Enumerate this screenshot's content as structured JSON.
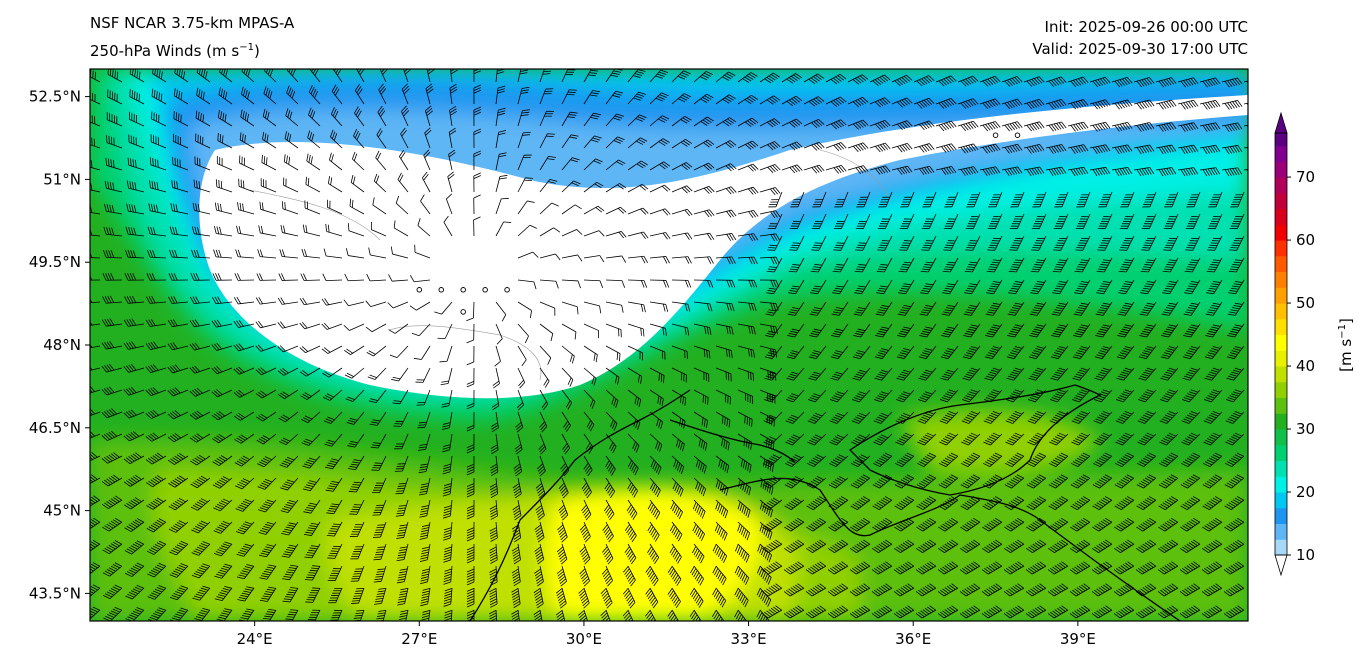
{
  "header": {
    "left_line1": "NSF NCAR 3.75-km MPAS-A",
    "left_line2": "250-hPa Winds (m s",
    "left_line2_sup": "−1",
    "left_line2_end": ")",
    "right_line1": "Init: 2025-09-26 00:00 UTC",
    "right_line2": "Valid: 2025-09-30 17:00 UTC"
  },
  "map": {
    "lon_range": [
      21,
      42.1
    ],
    "lat_range": [
      43.0,
      53.0
    ],
    "lat_ticks": [
      {
        "value": 52.5,
        "label": "52.5°N"
      },
      {
        "value": 51.0,
        "label": "51°N"
      },
      {
        "value": 49.5,
        "label": "49.5°N"
      },
      {
        "value": 48.0,
        "label": "48°N"
      },
      {
        "value": 46.5,
        "label": "46.5°N"
      },
      {
        "value": 45.0,
        "label": "45°N"
      },
      {
        "value": 43.5,
        "label": "43.5°N"
      }
    ],
    "lon_ticks": [
      {
        "value": 24,
        "label": "24°E"
      },
      {
        "value": 27,
        "label": "27°E"
      },
      {
        "value": 30,
        "label": "30°E"
      },
      {
        "value": 33,
        "label": "33°E"
      },
      {
        "value": 36,
        "label": "36°E"
      },
      {
        "value": 39,
        "label": "39°E"
      }
    ],
    "calm_points": [
      [
        27.0,
        49.0
      ],
      [
        27.4,
        49.0
      ],
      [
        27.8,
        49.0
      ],
      [
        28.2,
        49.0
      ],
      [
        28.6,
        49.0
      ],
      [
        27.8,
        48.6
      ],
      [
        37.5,
        51.8
      ],
      [
        37.9,
        51.8
      ]
    ]
  },
  "colorbar": {
    "label": "[m s",
    "label_sup": "−1",
    "label_end": "]",
    "min": 10,
    "max": 77,
    "ticks": [
      "10",
      "20",
      "30",
      "40",
      "50",
      "60",
      "70"
    ],
    "levels": [
      {
        "from": 10,
        "to": 12.5,
        "color": "#a8d8f8"
      },
      {
        "from": 12.5,
        "to": 15,
        "color": "#5fb6f5"
      },
      {
        "from": 15,
        "to": 17.5,
        "color": "#1e96f0"
      },
      {
        "from": 17.5,
        "to": 20,
        "color": "#00c8f0"
      },
      {
        "from": 20,
        "to": 22.5,
        "color": "#00f0e6"
      },
      {
        "from": 22.5,
        "to": 25,
        "color": "#00e0b0"
      },
      {
        "from": 25,
        "to": 27.5,
        "color": "#00d070"
      },
      {
        "from": 27.5,
        "to": 30,
        "color": "#10c04a"
      },
      {
        "from": 30,
        "to": 32.5,
        "color": "#22b020"
      },
      {
        "from": 32.5,
        "to": 35,
        "color": "#5cc010"
      },
      {
        "from": 35,
        "to": 37.5,
        "color": "#90d000"
      },
      {
        "from": 37.5,
        "to": 40,
        "color": "#c0e000"
      },
      {
        "from": 40,
        "to": 42.5,
        "color": "#e6f000"
      },
      {
        "from": 42.5,
        "to": 45,
        "color": "#ffff00"
      },
      {
        "from": 45,
        "to": 47.5,
        "color": "#ffe000"
      },
      {
        "from": 47.5,
        "to": 50,
        "color": "#ffc000"
      },
      {
        "from": 50,
        "to": 52.5,
        "color": "#ffa000"
      },
      {
        "from": 52.5,
        "to": 55,
        "color": "#ff8000"
      },
      {
        "from": 55,
        "to": 57.5,
        "color": "#ff5a00"
      },
      {
        "from": 57.5,
        "to": 60,
        "color": "#ff3000"
      },
      {
        "from": 60,
        "to": 62.5,
        "color": "#f00000"
      },
      {
        "from": 62.5,
        "to": 65,
        "color": "#d8001a"
      },
      {
        "from": 65,
        "to": 67.5,
        "color": "#c0003a"
      },
      {
        "from": 67.5,
        "to": 70,
        "color": "#b0005a"
      },
      {
        "from": 70,
        "to": 72.5,
        "color": "#9a0078"
      },
      {
        "from": 72.5,
        "to": 75,
        "color": "#800090"
      },
      {
        "from": 75,
        "to": 77,
        "color": "#5a0080"
      }
    ]
  }
}
